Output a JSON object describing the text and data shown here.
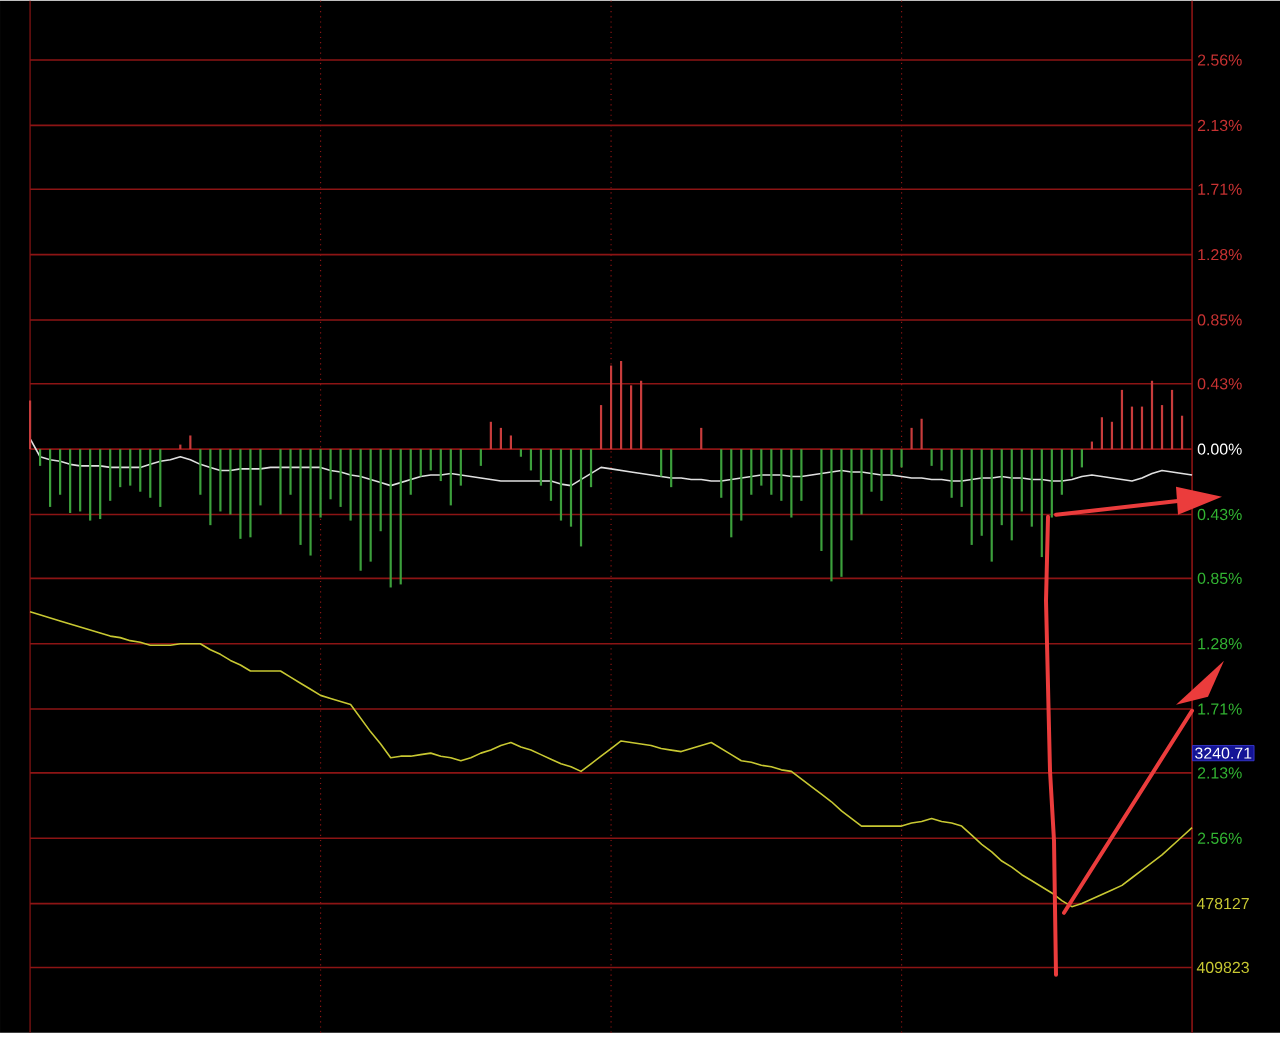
{
  "chart_data": {
    "type": "line",
    "categories": [
      null,
      null,
      null,
      null,
      null,
      null,
      null,
      null,
      null,
      null,
      null,
      null,
      null,
      null,
      null,
      null,
      null,
      null,
      null,
      null,
      null,
      null,
      null,
      null,
      null,
      null,
      null,
      null,
      null,
      null,
      null,
      null,
      null,
      null,
      null,
      null,
      null,
      null,
      null,
      null,
      null,
      null,
      null,
      null,
      null,
      null,
      null,
      null,
      null,
      null,
      null,
      null,
      null,
      null,
      null,
      null,
      null,
      null,
      null,
      null,
      null,
      null,
      null,
      null,
      null,
      null,
      null,
      null,
      null,
      null,
      null,
      null,
      null,
      null,
      null,
      null,
      null,
      null,
      null,
      null,
      null,
      null,
      null,
      null,
      null,
      null,
      null,
      null,
      null,
      null,
      null,
      null,
      null,
      null,
      null,
      null,
      null,
      null,
      null,
      null,
      null,
      null,
      null,
      null,
      null,
      null,
      null,
      null,
      null,
      null,
      null,
      null,
      null,
      null,
      null,
      null,
      null
    ],
    "ylim": [
      -3.84,
      2.95
    ],
    "yticks": [
      {
        "value": 2.56,
        "label": "2.56%"
      },
      {
        "value": 2.13,
        "label": "2.13%"
      },
      {
        "value": 1.71,
        "label": "1.71%"
      },
      {
        "value": 1.28,
        "label": "1.28%"
      },
      {
        "value": 0.85,
        "label": "0.85%"
      },
      {
        "value": 0.43,
        "label": "0.43%"
      },
      {
        "value": 0,
        "label": "0.00%"
      },
      {
        "value": -0.43,
        "label": "0.43%"
      },
      {
        "value": -0.85,
        "label": "0.85%"
      },
      {
        "value": -1.28,
        "label": "1.28%"
      },
      {
        "value": -1.71,
        "label": "1.71%"
      },
      {
        "value": -2.13,
        "label": "2.13%"
      },
      {
        "value": -2.56,
        "label": "2.56%"
      },
      {
        "value": -2.99,
        "label": null
      },
      {
        "value": -3.41,
        "label": null
      }
    ],
    "tick_labels": "y",
    "grid": true,
    "series": [
      {
        "color": "#e0e0e0",
        "values": [
          0.07,
          -0.05,
          -0.07,
          -0.08,
          -0.1,
          -0.11,
          -0.11,
          -0.11,
          -0.12,
          -0.12,
          -0.12,
          -0.12,
          -0.1,
          -0.08,
          -0.07,
          -0.05,
          -0.07,
          -0.1,
          -0.12,
          -0.14,
          -0.14,
          -0.13,
          -0.13,
          -0.13,
          -0.12,
          -0.12,
          -0.12,
          -0.12,
          -0.12,
          -0.12,
          -0.14,
          -0.15,
          -0.17,
          -0.18,
          -0.2,
          -0.22,
          -0.24,
          -0.22,
          -0.2,
          -0.18,
          -0.17,
          -0.17,
          -0.16,
          -0.17,
          -0.18,
          -0.19,
          -0.2,
          -0.21,
          -0.21,
          -0.21,
          -0.21,
          -0.21,
          -0.21,
          -0.23,
          -0.24,
          -0.2,
          -0.16,
          -0.12,
          -0.13,
          -0.14,
          -0.15,
          -0.16,
          -0.17,
          -0.18,
          -0.19,
          -0.19,
          -0.2,
          -0.2,
          -0.21,
          -0.21,
          -0.2,
          -0.19,
          -0.18,
          -0.17,
          -0.17,
          -0.17,
          -0.18,
          -0.18,
          -0.17,
          -0.16,
          -0.15,
          -0.14,
          -0.15,
          -0.15,
          -0.16,
          -0.17,
          -0.17,
          -0.18,
          -0.19,
          -0.19,
          -0.2,
          -0.2,
          -0.21,
          -0.21,
          -0.2,
          -0.19,
          -0.19,
          -0.18,
          -0.19,
          -0.19,
          -0.2,
          -0.2,
          -0.21,
          -0.21,
          -0.2,
          -0.18,
          -0.17,
          -0.18,
          -0.19,
          -0.2,
          -0.21,
          -0.19,
          -0.16,
          -0.14,
          -0.15,
          -0.16,
          -0.17
        ]
      },
      {
        "color": "#c8c832",
        "values": [
          -1.07,
          -1.09,
          -1.11,
          -1.13,
          -1.15,
          -1.17,
          -1.19,
          -1.21,
          -1.23,
          -1.24,
          -1.26,
          -1.27,
          -1.29,
          -1.29,
          -1.29,
          -1.28,
          -1.28,
          -1.28,
          -1.32,
          -1.35,
          -1.39,
          -1.42,
          -1.46,
          -1.46,
          -1.46,
          -1.46,
          -1.5,
          -1.54,
          -1.58,
          -1.62,
          -1.64,
          -1.66,
          -1.68,
          -1.77,
          -1.86,
          -1.94,
          -2.03,
          -2.02,
          -2.02,
          -2.01,
          -2.0,
          -2.02,
          -2.03,
          -2.05,
          -2.03,
          -2.0,
          -1.98,
          -1.95,
          -1.93,
          -1.96,
          -1.98,
          -2.01,
          -2.04,
          -2.07,
          -2.09,
          -2.12,
          -2.07,
          -2.02,
          -1.97,
          -1.92,
          -1.93,
          -1.94,
          -1.95,
          -1.97,
          -1.98,
          -1.99,
          -1.97,
          -1.95,
          -1.93,
          -1.97,
          -2.01,
          -2.05,
          -2.06,
          -2.08,
          -2.09,
          -2.11,
          -2.12,
          -2.17,
          -2.22,
          -2.27,
          -2.32,
          -2.38,
          -2.43,
          -2.48,
          -2.48,
          -2.48,
          -2.48,
          -2.48,
          -2.46,
          -2.45,
          -2.43,
          -2.45,
          -2.46,
          -2.48,
          -2.54,
          -2.6,
          -2.65,
          -2.71,
          -2.75,
          -2.8,
          -2.84,
          -2.88,
          -2.92,
          -2.97,
          -3.01,
          -2.99,
          -2.96,
          -2.93,
          -2.9,
          -2.87,
          -2.82,
          -2.77,
          -2.72,
          -2.67,
          -2.61,
          -2.55,
          -2.49
        ]
      },
      {
        "type": "bar",
        "color": "#c83c3c",
        "values": [
          0.32,
          null,
          null,
          null,
          null,
          null,
          null,
          null,
          null,
          null,
          null,
          null,
          null,
          null,
          null,
          0.03,
          0.09,
          null,
          null,
          null,
          null,
          null,
          null,
          null,
          null,
          null,
          null,
          null,
          null,
          null,
          null,
          null,
          null,
          null,
          null,
          null,
          null,
          null,
          null,
          null,
          null,
          null,
          null,
          null,
          null,
          null,
          0.18,
          0.14,
          0.09,
          null,
          null,
          null,
          null,
          null,
          null,
          null,
          null,
          0.29,
          0.55,
          0.58,
          0.42,
          0.45,
          null,
          null,
          null,
          null,
          null,
          0.14,
          null,
          null,
          null,
          null,
          null,
          null,
          null,
          null,
          null,
          null,
          null,
          null,
          null,
          null,
          null,
          null,
          null,
          null,
          null,
          null,
          0.14,
          0.2,
          null,
          null,
          null,
          null,
          null,
          null,
          null,
          null,
          null,
          null,
          null,
          null,
          null,
          null,
          null,
          null,
          0.05,
          0.21,
          0.18,
          0.39,
          0.28,
          0.28,
          0.45,
          0.29,
          0.39,
          0.22,
          null
        ]
      },
      {
        "type": "bar",
        "color": "#3ca03c",
        "values": [
          null,
          -0.11,
          -0.38,
          -0.3,
          -0.42,
          -0.41,
          -0.47,
          -0.46,
          -0.34,
          -0.25,
          -0.24,
          -0.28,
          -0.32,
          -0.38,
          null,
          null,
          null,
          -0.3,
          -0.5,
          -0.41,
          -0.43,
          -0.59,
          -0.58,
          -0.37,
          null,
          -0.43,
          -0.3,
          -0.63,
          -0.7,
          -0.45,
          -0.33,
          -0.38,
          -0.47,
          -0.8,
          -0.74,
          -0.54,
          -0.91,
          -0.89,
          -0.3,
          -0.18,
          -0.14,
          -0.21,
          -0.37,
          -0.24,
          null,
          -0.11,
          null,
          null,
          null,
          -0.05,
          -0.14,
          -0.24,
          -0.34,
          -0.47,
          -0.51,
          -0.64,
          -0.25,
          null,
          null,
          null,
          null,
          null,
          null,
          -0.18,
          -0.25,
          null,
          null,
          null,
          null,
          -0.32,
          -0.58,
          -0.47,
          -0.3,
          -0.24,
          -0.3,
          -0.34,
          -0.45,
          -0.34,
          null,
          -0.67,
          -0.87,
          -0.84,
          -0.6,
          -0.43,
          -0.28,
          -0.34,
          -0.17,
          -0.12,
          null,
          null,
          -0.11,
          -0.14,
          -0.32,
          -0.38,
          -0.63,
          -0.57,
          -0.74,
          -0.5,
          -0.6,
          -0.41,
          -0.51,
          -0.71,
          -0.45,
          -0.3,
          -0.18,
          -0.12,
          null,
          null,
          null,
          null,
          null,
          null,
          null,
          null,
          null,
          null,
          null
        ]
      }
    ],
    "annotations": [
      "3240.71",
      "478127",
      "409823"
    ]
  }
}
